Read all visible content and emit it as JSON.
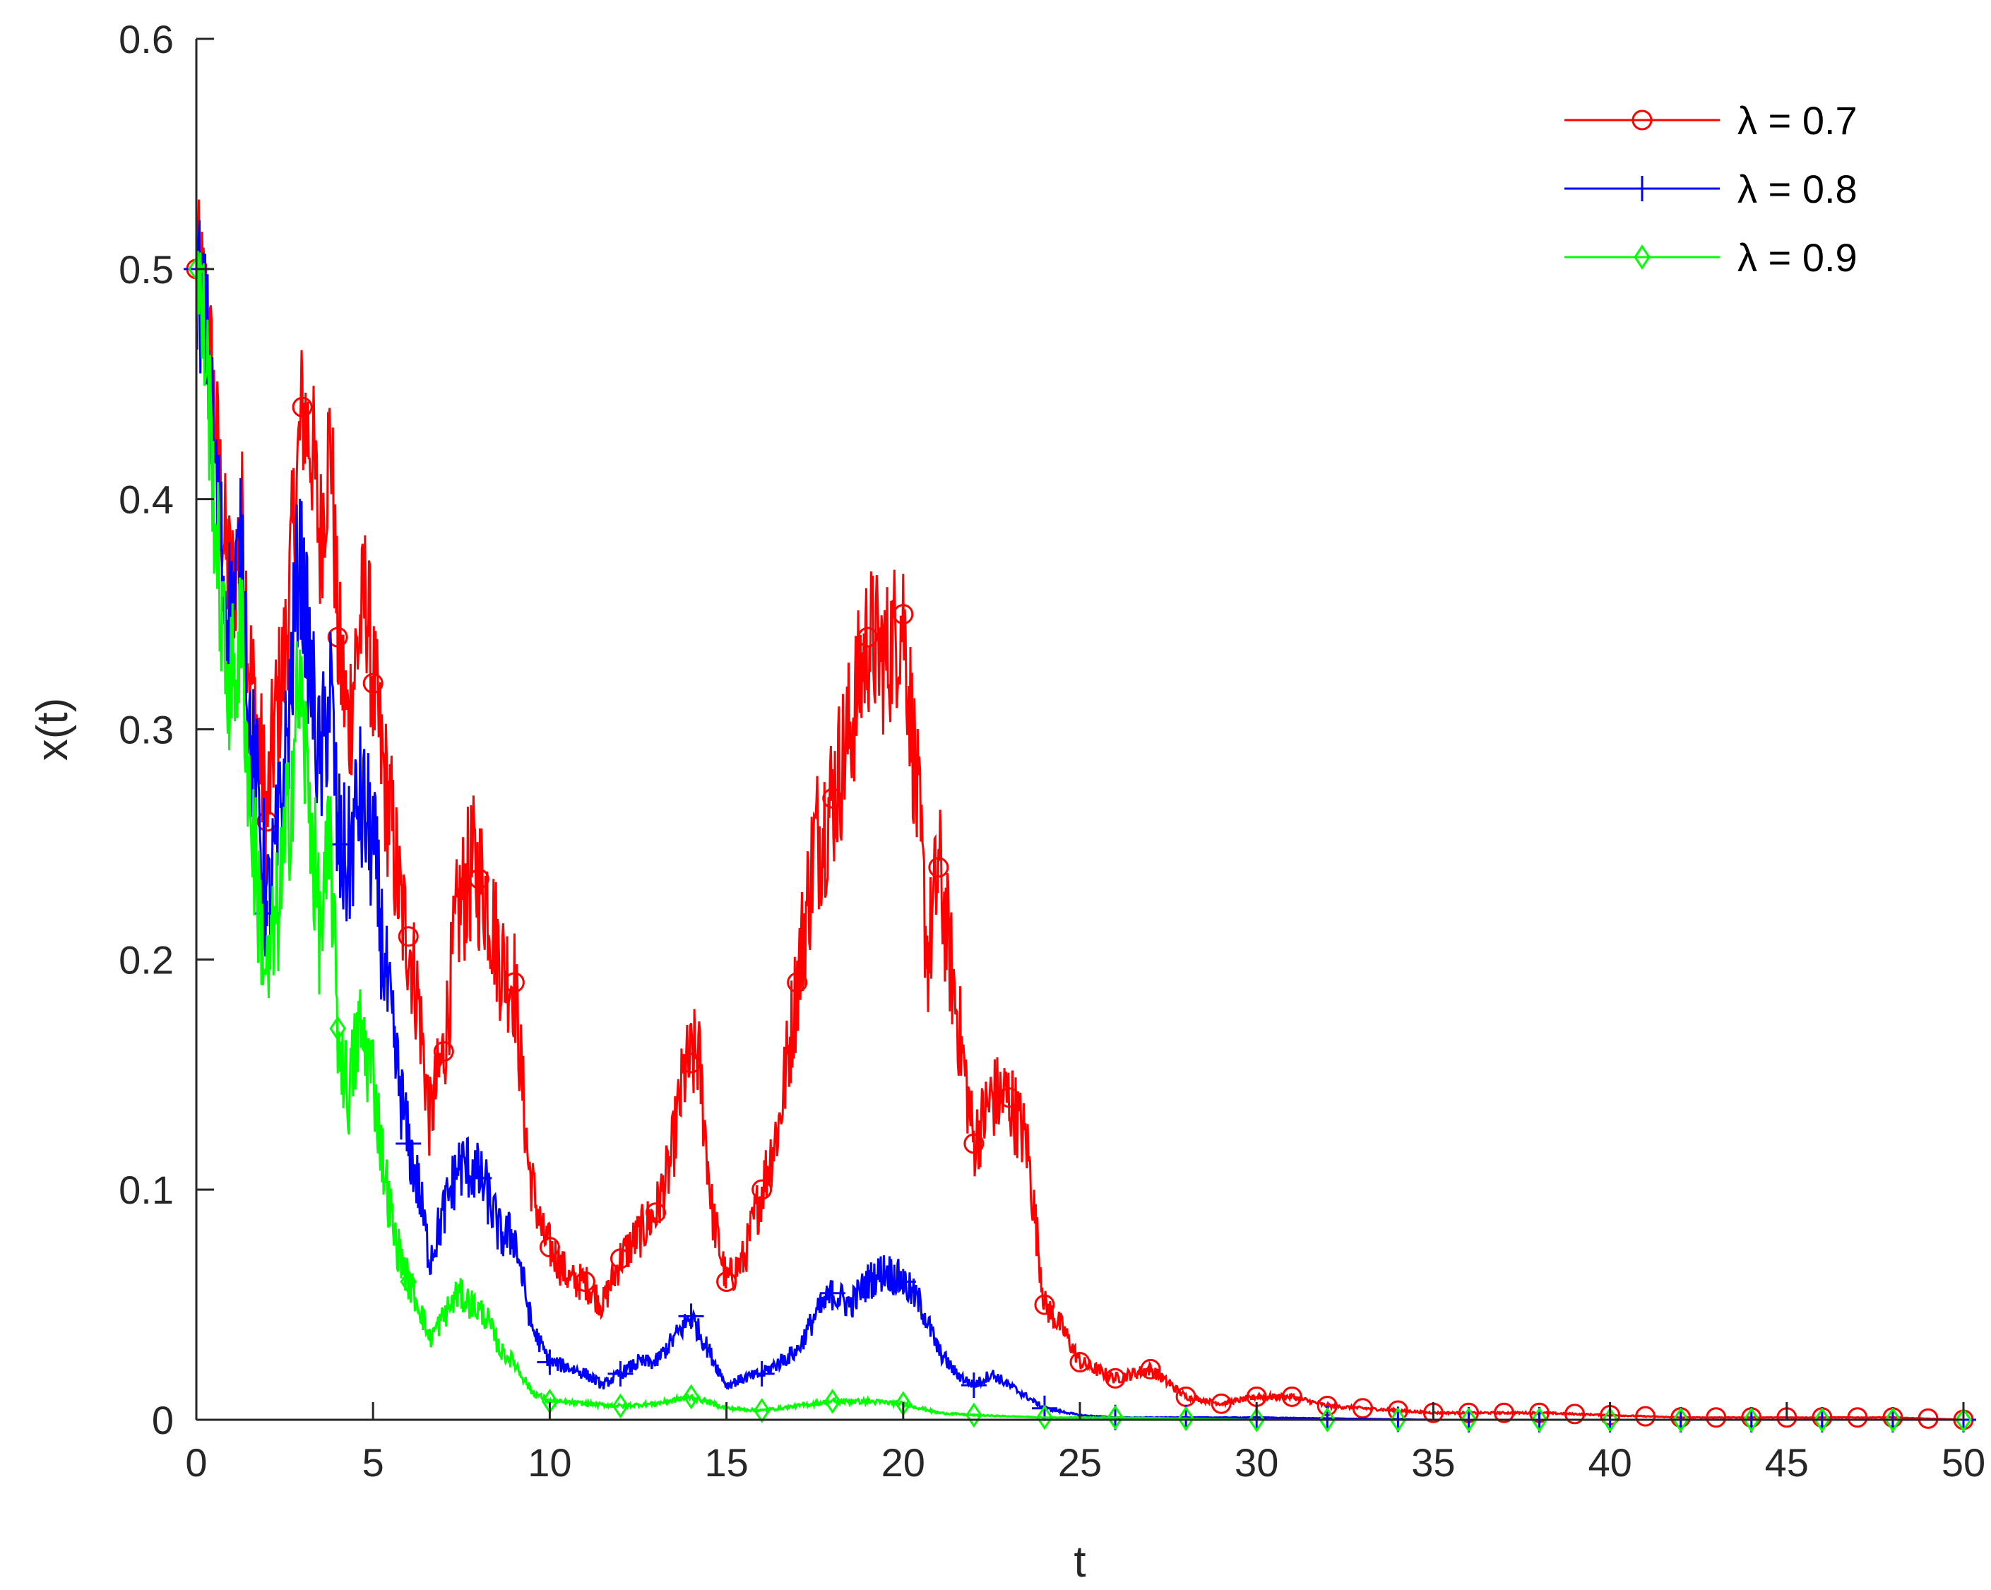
{
  "chart_data": {
    "type": "line",
    "title": "",
    "xlabel": "t",
    "ylabel": "x(t)",
    "xlim": [
      0,
      50
    ],
    "ylim": [
      0,
      0.6
    ],
    "x_ticks": [
      0,
      5,
      10,
      15,
      20,
      25,
      30,
      35,
      40,
      45,
      50
    ],
    "x_tick_labels": [
      "0",
      "5",
      "10",
      "15",
      "20",
      "25",
      "30",
      "35",
      "40",
      "45",
      "50"
    ],
    "y_ticks": [
      0,
      0.1,
      0.2,
      0.3,
      0.4,
      0.5,
      0.6
    ],
    "y_tick_labels": [
      "0",
      "0.1",
      "0.2",
      "0.3",
      "0.4",
      "0.5",
      "0.6"
    ],
    "grid": false,
    "legend_position": "top-right",
    "series": [
      {
        "name": "λ = 0.7",
        "color": "#ff0000",
        "marker": "circle",
        "x": [
          0,
          0.3,
          0.5,
          0.8,
          1.0,
          1.3,
          1.5,
          1.8,
          2.0,
          2.2,
          2.5,
          2.8,
          3.0,
          3.3,
          3.5,
          3.8,
          4.0,
          4.3,
          4.5,
          4.8,
          5.0,
          5.3,
          5.5,
          5.8,
          6.0,
          6.3,
          6.6,
          7.0,
          7.4,
          7.8,
          8.2,
          8.6,
          9.0,
          9.4,
          9.8,
          10.2,
          10.6,
          11.0,
          11.5,
          12.0,
          12.5,
          13.0,
          13.4,
          13.8,
          14.2,
          14.6,
          15.0,
          15.5,
          16.0,
          16.5,
          17.0,
          17.5,
          18.0,
          18.5,
          19.0,
          19.5,
          20.0,
          20.3,
          20.7,
          21.0,
          21.5,
          22.0,
          22.5,
          23.0,
          23.5,
          24.0,
          24.5,
          25.0,
          26.0,
          27.0,
          28.0,
          29.0,
          30.0,
          31.0,
          32.0,
          33.0,
          34.0,
          35.0,
          36.0,
          38.0,
          40.0,
          42.0,
          44.0,
          46.0,
          48.0,
          50.0
        ],
        "y": [
          0.5,
          0.48,
          0.44,
          0.38,
          0.36,
          0.39,
          0.33,
          0.29,
          0.26,
          0.3,
          0.33,
          0.4,
          0.44,
          0.42,
          0.38,
          0.43,
          0.34,
          0.3,
          0.33,
          0.36,
          0.32,
          0.28,
          0.26,
          0.22,
          0.21,
          0.18,
          0.13,
          0.16,
          0.22,
          0.24,
          0.23,
          0.2,
          0.19,
          0.11,
          0.08,
          0.07,
          0.06,
          0.06,
          0.05,
          0.07,
          0.08,
          0.09,
          0.11,
          0.15,
          0.16,
          0.09,
          0.06,
          0.07,
          0.1,
          0.13,
          0.19,
          0.25,
          0.27,
          0.3,
          0.34,
          0.33,
          0.35,
          0.29,
          0.2,
          0.24,
          0.18,
          0.12,
          0.14,
          0.14,
          0.12,
          0.05,
          0.04,
          0.025,
          0.018,
          0.022,
          0.01,
          0.007,
          0.01,
          0.01,
          0.006,
          0.005,
          0.004,
          0.003,
          0.003,
          0.003,
          0.002,
          0.001,
          0.001,
          0.001,
          0.001,
          0.0
        ],
        "marker_x": [
          0,
          2,
          3,
          4,
          5,
          6,
          7,
          8,
          9,
          10,
          11,
          12,
          13,
          14,
          15,
          16,
          17,
          18,
          19,
          20,
          21,
          22,
          23,
          24,
          25,
          26,
          27,
          28,
          29,
          30,
          31,
          32,
          33,
          34,
          35,
          36,
          37,
          38,
          39,
          40,
          41,
          42,
          43,
          44,
          45,
          46,
          47,
          48,
          49,
          50
        ]
      },
      {
        "name": "λ = 0.8",
        "color": "#0000ff",
        "marker": "plus",
        "x": [
          0,
          0.3,
          0.5,
          0.8,
          1.0,
          1.3,
          1.5,
          1.8,
          2.0,
          2.3,
          2.6,
          2.9,
          3.2,
          3.5,
          3.8,
          4.0,
          4.3,
          4.6,
          5.0,
          5.3,
          5.6,
          6.0,
          6.3,
          6.6,
          7.0,
          7.4,
          7.8,
          8.2,
          8.6,
          9.0,
          9.5,
          10.0,
          10.5,
          11.0,
          11.5,
          12.0,
          12.5,
          13.0,
          13.5,
          14.0,
          14.5,
          15.0,
          15.5,
          16.0,
          16.5,
          17.0,
          17.5,
          18.0,
          18.5,
          19.0,
          19.5,
          20.0,
          20.5,
          21.0,
          21.5,
          22.0,
          22.5,
          23.0,
          23.5,
          24.0,
          25.0,
          26.0,
          28.0,
          30.0,
          35.0,
          40.0,
          45.0,
          50.0
        ],
        "y": [
          0.5,
          0.47,
          0.42,
          0.36,
          0.35,
          0.38,
          0.3,
          0.26,
          0.22,
          0.25,
          0.3,
          0.38,
          0.33,
          0.28,
          0.32,
          0.25,
          0.24,
          0.27,
          0.25,
          0.2,
          0.16,
          0.12,
          0.1,
          0.07,
          0.09,
          0.11,
          0.11,
          0.1,
          0.08,
          0.08,
          0.04,
          0.025,
          0.023,
          0.02,
          0.015,
          0.02,
          0.025,
          0.025,
          0.035,
          0.045,
          0.03,
          0.015,
          0.018,
          0.02,
          0.025,
          0.03,
          0.045,
          0.055,
          0.05,
          0.06,
          0.065,
          0.06,
          0.05,
          0.03,
          0.02,
          0.015,
          0.02,
          0.015,
          0.01,
          0.005,
          0.002,
          0.001,
          0.001,
          0.001,
          0.0,
          0.0,
          0.0,
          0.0
        ],
        "marker_x": [
          0,
          2,
          4,
          6,
          8,
          10,
          12,
          14,
          16,
          18,
          20,
          22,
          24,
          26,
          28,
          30,
          32,
          34,
          36,
          38,
          40,
          42,
          44,
          46,
          48,
          50
        ]
      },
      {
        "name": "λ = 0.9",
        "color": "#00ff00",
        "marker": "diamond",
        "x": [
          0,
          0.3,
          0.5,
          0.8,
          1.0,
          1.3,
          1.5,
          1.8,
          2.0,
          2.3,
          2.6,
          2.9,
          3.2,
          3.5,
          3.8,
          4.0,
          4.3,
          4.6,
          5.0,
          5.3,
          5.6,
          6.0,
          6.3,
          6.6,
          7.0,
          7.4,
          7.8,
          8.2,
          8.6,
          9.0,
          9.5,
          10.0,
          11.0,
          12.0,
          13.0,
          14.0,
          15.0,
          16.0,
          17.0,
          18.0,
          19.0,
          20.0,
          21.0,
          22.0,
          24.0,
          26.0,
          30.0,
          35.0,
          40.0,
          45.0,
          50.0
        ],
        "y": [
          0.5,
          0.46,
          0.4,
          0.33,
          0.32,
          0.34,
          0.27,
          0.22,
          0.19,
          0.22,
          0.26,
          0.32,
          0.27,
          0.21,
          0.25,
          0.17,
          0.14,
          0.17,
          0.15,
          0.11,
          0.08,
          0.06,
          0.05,
          0.035,
          0.045,
          0.055,
          0.05,
          0.045,
          0.03,
          0.025,
          0.012,
          0.008,
          0.007,
          0.006,
          0.007,
          0.01,
          0.005,
          0.004,
          0.006,
          0.008,
          0.008,
          0.007,
          0.003,
          0.002,
          0.001,
          0.001,
          0.0,
          0.0,
          0.0,
          0.0,
          0.0
        ],
        "marker_x": [
          0,
          4,
          6,
          10,
          12,
          14,
          16,
          18,
          20,
          22,
          24,
          26,
          28,
          30,
          32,
          34,
          36,
          38,
          40,
          42,
          44,
          46,
          48,
          50
        ]
      }
    ]
  }
}
